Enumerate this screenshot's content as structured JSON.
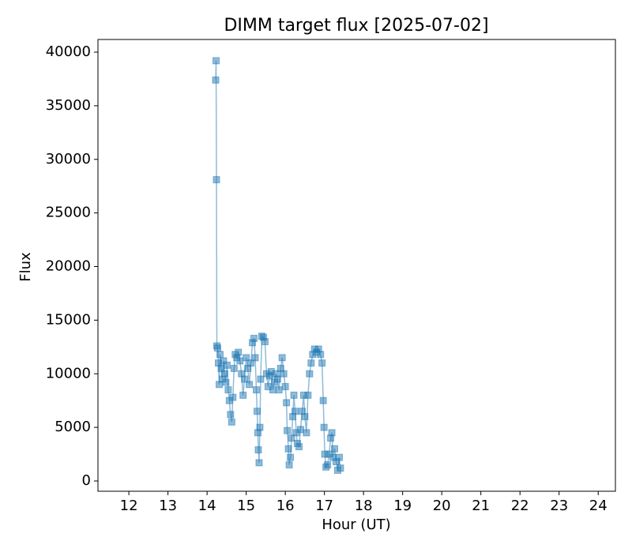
{
  "chart_data": {
    "type": "line",
    "title": "DIMM target flux [2025-07-02]",
    "x_label": "Hour (UT)",
    "y_label": "Flux",
    "color": "#1f77b4",
    "marker": "square",
    "xlim": [
      11.21,
      24.44
    ],
    "ylim": [
      -958,
      41180
    ],
    "xticks": [
      12,
      13,
      14,
      15,
      16,
      17,
      18,
      19,
      20,
      21,
      22,
      23,
      24
    ],
    "yticks": [
      0,
      5000,
      10000,
      15000,
      20000,
      25000,
      30000,
      35000,
      40000
    ],
    "x": [
      14.22,
      14.23,
      14.24,
      14.25,
      14.27,
      14.29,
      14.31,
      14.33,
      14.36,
      14.39,
      14.42,
      14.45,
      14.48,
      14.51,
      14.54,
      14.57,
      14.6,
      14.63,
      14.66,
      14.69,
      14.72,
      14.76,
      14.8,
      14.84,
      14.88,
      14.92,
      14.96,
      15.0,
      15.04,
      15.08,
      15.12,
      15.16,
      15.2,
      15.23,
      15.26,
      15.28,
      15.3,
      15.31,
      15.33,
      15.35,
      15.37,
      15.4,
      15.44,
      15.48,
      15.52,
      15.56,
      15.6,
      15.64,
      15.68,
      15.72,
      15.76,
      15.8,
      15.84,
      15.88,
      15.92,
      15.96,
      16.0,
      16.03,
      16.05,
      16.08,
      16.1,
      16.13,
      16.16,
      16.19,
      16.22,
      16.25,
      16.28,
      16.31,
      16.35,
      16.39,
      16.43,
      16.47,
      16.5,
      16.54,
      16.58,
      16.62,
      16.66,
      16.7,
      16.75,
      16.8,
      16.85,
      16.9,
      16.94,
      16.97,
      16.99,
      17.01,
      17.04,
      17.08,
      17.12,
      17.16,
      17.19,
      17.22,
      17.26,
      17.3,
      17.34,
      17.38,
      17.41
    ],
    "values": [
      37400,
      39200,
      28100,
      12600,
      12400,
      11000,
      9000,
      11800,
      10500,
      9500,
      11200,
      10000,
      9200,
      10800,
      8500,
      7500,
      6200,
      5500,
      7800,
      10500,
      11800,
      11500,
      12000,
      11200,
      10000,
      8000,
      9500,
      11500,
      10500,
      9000,
      11000,
      12900,
      13300,
      11500,
      8500,
      6500,
      4500,
      2900,
      1700,
      5000,
      9500,
      13500,
      13400,
      13000,
      10000,
      8800,
      9800,
      10200,
      8500,
      9200,
      10000,
      9500,
      8500,
      10500,
      11500,
      10000,
      8800,
      7300,
      4700,
      3000,
      1500,
      2200,
      4000,
      6000,
      8000,
      6500,
      4500,
      3500,
      3200,
      4800,
      6500,
      8000,
      6000,
      4500,
      8000,
      10000,
      11000,
      11800,
      12300,
      12000,
      12300,
      11800,
      11000,
      7500,
      5000,
      2500,
      1300,
      1500,
      2500,
      4000,
      4500,
      2200,
      3000,
      1800,
      1000,
      2200,
      1200
    ]
  }
}
